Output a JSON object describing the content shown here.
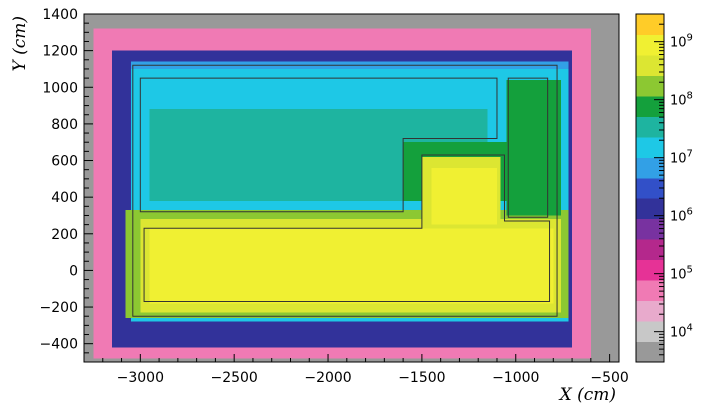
{
  "chart_data": {
    "type": "heatmap",
    "title": "",
    "xlabel": "X (cm)",
    "ylabel": "Y (cm)",
    "xlim": [
      -3300,
      -450
    ],
    "ylim": [
      -500,
      1400
    ],
    "xticks": [
      -3000,
      -2500,
      -2000,
      -1500,
      -1000,
      -500
    ],
    "xtick_labels": [
      "−3000",
      "−2500",
      "−2000",
      "−1500",
      "−1000",
      "−500"
    ],
    "yticks": [
      -400,
      -200,
      0,
      200,
      400,
      600,
      800,
      1000,
      1200,
      1400
    ],
    "ytick_labels": [
      "−400",
      "−200",
      "0",
      "200",
      "400",
      "600",
      "800",
      "1000",
      "1200",
      "1400"
    ],
    "colorbar": {
      "scale": "log",
      "range": [
        3000,
        3000000000
      ],
      "tick_values": [
        10000,
        100000,
        1000000,
        10000000,
        100000000,
        1000000000
      ],
      "tick_labels": [
        {
          "base": "10",
          "exp": "4"
        },
        {
          "base": "10",
          "exp": "5"
        },
        {
          "base": "10",
          "exp": "6"
        },
        {
          "base": "10",
          "exp": "7"
        },
        {
          "base": "10",
          "exp": "8"
        },
        {
          "base": "10",
          "exp": "9"
        }
      ],
      "colors": [
        "#999999",
        "#c8c8c8",
        "#e8aacc",
        "#f07ab4",
        "#e63296",
        "#b4288c",
        "#7832a0",
        "#32329a",
        "#3250c8",
        "#32a0e6",
        "#1ec8e6",
        "#1eb4a0",
        "#14a03c",
        "#8cc832",
        "#dce632",
        "#f0f032",
        "#ffcc28"
      ]
    },
    "z_scale": {
      "min_exp": 3.5,
      "max_exp": 9.5
    },
    "field_regions": [
      {
        "x": [
          -3300,
          -450
        ],
        "y": [
          -500,
          1400
        ],
        "log10": 3.6
      },
      {
        "x": [
          -3250,
          -600
        ],
        "y": [
          -480,
          1320
        ],
        "log10": 4.8
      },
      {
        "x": [
          -3150,
          -700
        ],
        "y": [
          -420,
          1200
        ],
        "log10": 6.0
      },
      {
        "x": [
          -3050,
          -720
        ],
        "y": [
          -280,
          1140
        ],
        "log10": 6.8
      },
      {
        "x": [
          -3050,
          -720
        ],
        "y": [
          -280,
          1100
        ],
        "log10": 7.1
      },
      {
        "x": [
          -2950,
          -1150
        ],
        "y": [
          380,
          880
        ],
        "log10": 7.6
      },
      {
        "x": [
          -3080,
          -720
        ],
        "y": [
          -260,
          330
        ],
        "log10": 8.2
      },
      {
        "x": [
          -1050,
          -760
        ],
        "y": [
          300,
          1040
        ],
        "log10": 8.0
      },
      {
        "x": [
          -1600,
          -1050
        ],
        "y": [
          380,
          700
        ],
        "log10": 8.0
      },
      {
        "x": [
          -3000,
          -760
        ],
        "y": [
          -230,
          280
        ],
        "log10": 8.7
      },
      {
        "x": [
          -1500,
          -1080
        ],
        "y": [
          250,
          620
        ],
        "log10": 8.7
      },
      {
        "x": [
          -2950,
          -800
        ],
        "y": [
          -180,
          230
        ],
        "log10": 9.0
      },
      {
        "x": [
          -1450,
          -1100
        ],
        "y": [
          250,
          560
        ],
        "log10": 9.0
      }
    ],
    "outlines": [
      [
        [
          -3040,
          1120
        ],
        [
          -780,
          1120
        ],
        [
          -780,
          -250
        ],
        [
          -3040,
          -250
        ]
      ],
      [
        [
          -3000,
          1050
        ],
        [
          -1100,
          1050
        ],
        [
          -1100,
          720
        ],
        [
          -1600,
          720
        ],
        [
          -1600,
          320
        ],
        [
          -3000,
          320
        ]
      ],
      [
        [
          -2980,
          230
        ],
        [
          -1500,
          230
        ],
        [
          -1500,
          630
        ],
        [
          -1060,
          630
        ],
        [
          -1060,
          270
        ],
        [
          -820,
          270
        ],
        [
          -820,
          -170
        ],
        [
          -2980,
          -170
        ]
      ],
      [
        [
          -1040,
          1050
        ],
        [
          -830,
          1050
        ],
        [
          -830,
          290
        ],
        [
          -1040,
          290
        ]
      ]
    ]
  }
}
